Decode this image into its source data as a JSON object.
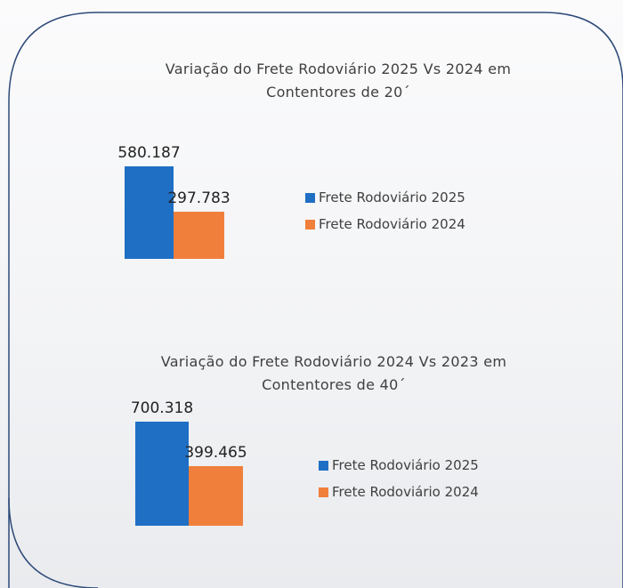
{
  "chart_data": [
    {
      "type": "bar",
      "title": "Variação do Frete Rodoviário 2025 Vs 2024 em Contentores de 20´",
      "series": [
        {
          "name": "Frete Rodoviário 2025",
          "color": "#1f6fc5",
          "values": [
            580187
          ],
          "value_labels": [
            "580.187"
          ]
        },
        {
          "name": "Frete Rodoviário 2024",
          "color": "#f07f3c",
          "values": [
            297783
          ],
          "value_labels": [
            "297.783"
          ]
        }
      ]
    },
    {
      "type": "bar",
      "title": "Variação do Frete Rodoviário 2024 Vs 2023 em Contentores de 40´",
      "series": [
        {
          "name": "Frete Rodoviário 2025",
          "color": "#1f6fc5",
          "values": [
            700318
          ],
          "value_labels": [
            "700.318"
          ]
        },
        {
          "name": "Frete Rodoviário 2024",
          "color": "#f07f3c",
          "values": [
            399465
          ],
          "value_labels": [
            "399.465"
          ]
        }
      ]
    }
  ]
}
